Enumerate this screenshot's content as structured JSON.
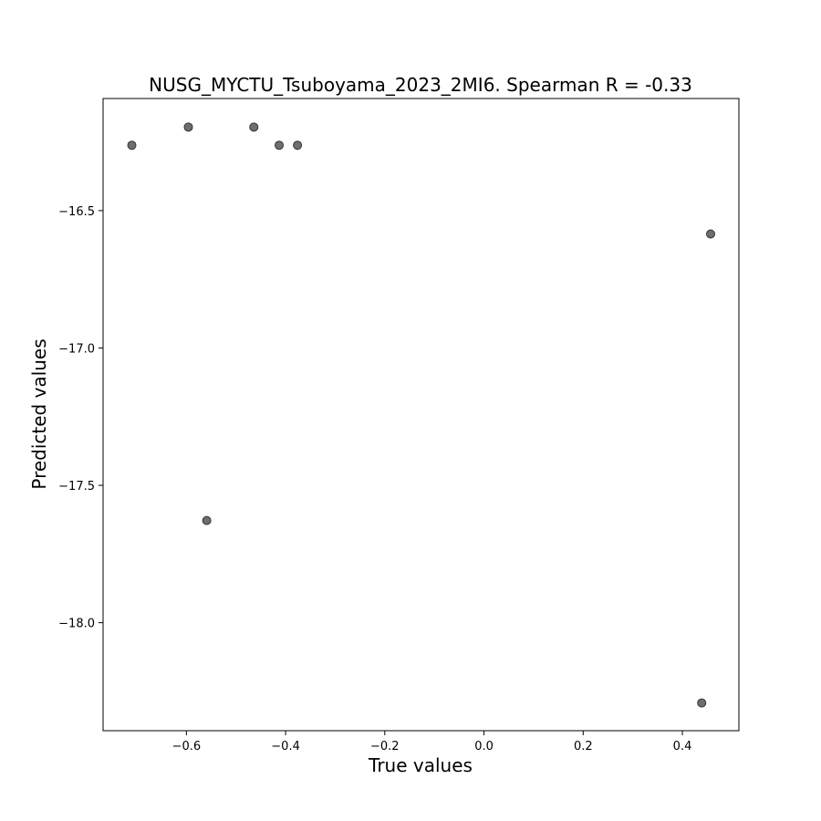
{
  "chart_data": {
    "type": "scatter",
    "title": "NUSG_MYCTU_Tsuboyama_2023_2MI6. Spearman R = -0.33",
    "xlabel": "True values",
    "ylabel": "Predicted values",
    "xlim": [
      -0.768,
      0.514
    ],
    "ylim": [
      -18.393,
      -16.092
    ],
    "x_ticks": [
      -0.6,
      -0.4,
      -0.2,
      0.0,
      0.2,
      0.4
    ],
    "x_tick_labels": [
      "−0.6",
      "−0.4",
      "−0.2",
      "0.0",
      "0.2",
      "0.4"
    ],
    "y_ticks": [
      -16.5,
      -17.0,
      -17.5,
      -18.0
    ],
    "y_tick_labels": [
      "−16.5",
      "−17.0",
      "−17.5",
      "−18.0"
    ],
    "grid": false,
    "marker_color": "#555555",
    "points": [
      {
        "x": -0.71,
        "y": -16.262
      },
      {
        "x": -0.596,
        "y": -16.196
      },
      {
        "x": -0.464,
        "y": -16.196
      },
      {
        "x": -0.413,
        "y": -16.262
      },
      {
        "x": -0.376,
        "y": -16.262
      },
      {
        "x": -0.559,
        "y": -17.628
      },
      {
        "x": 0.457,
        "y": -16.585
      },
      {
        "x": 0.439,
        "y": -18.292
      }
    ]
  }
}
